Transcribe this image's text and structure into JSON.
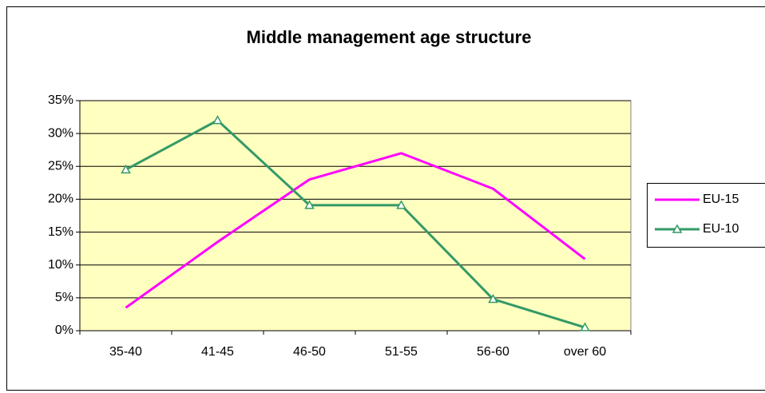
{
  "chart_data": {
    "type": "line",
    "title": "Middle management age structure",
    "categories": [
      "35-40",
      "41-45",
      "46-50",
      "51-55",
      "56-60",
      "over 60"
    ],
    "series": [
      {
        "name": "EU-15",
        "color": "#ff00ff",
        "marker": "none",
        "values": [
          3.5,
          13.5,
          23,
          27,
          21.6,
          10.9
        ]
      },
      {
        "name": "EU-10",
        "color": "#339966",
        "marker": "triangle",
        "values": [
          24.5,
          32,
          19.1,
          19.1,
          4.8,
          0.5
        ]
      }
    ],
    "ylim": [
      0,
      35
    ],
    "yticks": [
      {
        "value": 0,
        "label": "0%"
      },
      {
        "value": 5,
        "label": "5%"
      },
      {
        "value": 10,
        "label": "10%"
      },
      {
        "value": 15,
        "label": "15%"
      },
      {
        "value": 20,
        "label": "20%"
      },
      {
        "value": 25,
        "label": "25%"
      },
      {
        "value": 30,
        "label": "30%"
      },
      {
        "value": 35,
        "label": "35%"
      }
    ],
    "grid": true,
    "legend": "right",
    "plot_background": "#ffffc0"
  }
}
